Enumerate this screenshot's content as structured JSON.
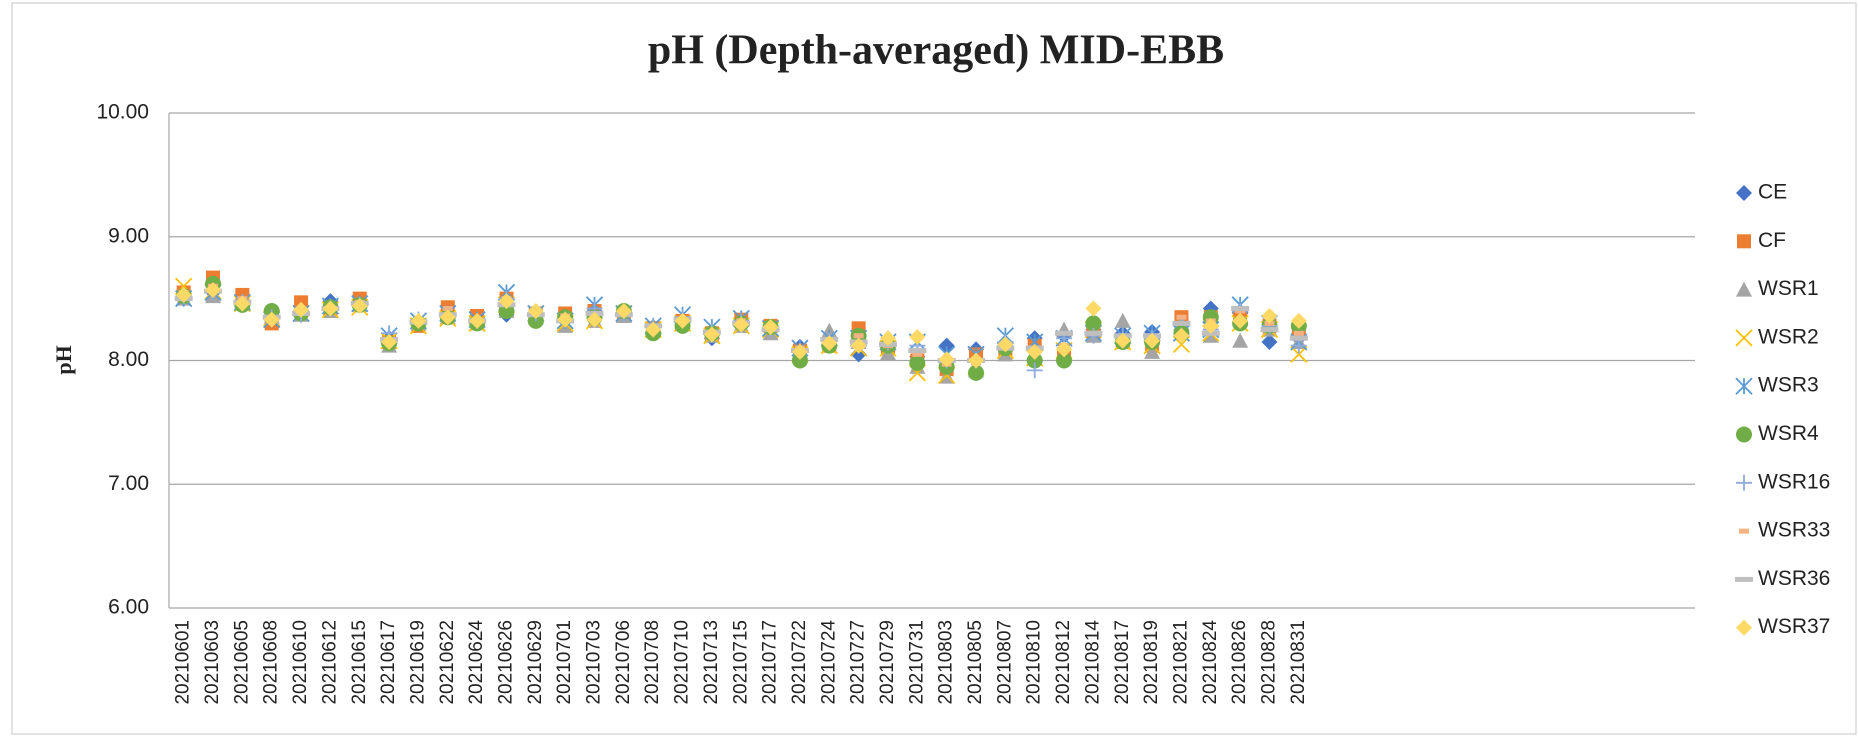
{
  "chart_data": {
    "type": "scatter",
    "title": "pH (Depth-averaged) MID-EBB",
    "y_label": "pH",
    "categories": [
      "20210601",
      "20210603",
      "20210605",
      "20210608",
      "20210610",
      "20210612",
      "20210615",
      "20210617",
      "20210619",
      "20210622",
      "20210624",
      "20210626",
      "20210629",
      "20210701",
      "20210703",
      "20210706",
      "20210708",
      "20210710",
      "20210713",
      "20210715",
      "20210717",
      "20210722",
      "20210724",
      "20210727",
      "20210729",
      "20210731",
      "20210803",
      "20210805",
      "20210807",
      "20210810",
      "20210812",
      "20210814",
      "20210817",
      "20210819",
      "20210821",
      "20210824",
      "20210826",
      "20210828",
      "20210831",
      null,
      null,
      null,
      null,
      null,
      null,
      null,
      null,
      null,
      null,
      null,
      null,
      null
    ],
    "ylim": [
      6,
      10
    ],
    "yticks": [
      {
        "value": 6,
        "label": "6.00"
      },
      {
        "value": 7,
        "label": "7.00"
      },
      {
        "value": 8,
        "label": "8.00"
      },
      {
        "value": 9,
        "label": "9.00"
      },
      {
        "value": 10,
        "label": "10.00"
      }
    ],
    "grid": true,
    "legend": "right",
    "series": [
      {
        "name": "CE",
        "color": "#4472c4",
        "marker": "diamond",
        "values": [
          8.5,
          8.55,
          8.48,
          8.33,
          8.4,
          8.48,
          8.47,
          8.18,
          8.3,
          8.38,
          8.35,
          8.37,
          8.36,
          8.32,
          8.4,
          8.38,
          8.27,
          8.32,
          8.18,
          8.3,
          8.26,
          8.11,
          8.13,
          8.05,
          8.12,
          8.03,
          8.12,
          8.09,
          8.12,
          8.18,
          8.2,
          8.25,
          8.22,
          8.23,
          8.25,
          8.42,
          8.38,
          8.15,
          8.18,
          null,
          null,
          null,
          null,
          null,
          null,
          null,
          null,
          null,
          null,
          null,
          null,
          null
        ]
      },
      {
        "name": "CF",
        "color": "#ed7d31",
        "marker": "square",
        "values": [
          8.55,
          8.67,
          8.53,
          8.3,
          8.47,
          8.4,
          8.5,
          8.15,
          8.28,
          8.43,
          8.36,
          8.5,
          8.38,
          8.38,
          8.4,
          8.38,
          8.26,
          8.32,
          8.22,
          8.33,
          8.28,
          8.08,
          8.12,
          8.26,
          8.1,
          8.0,
          7.93,
          8.05,
          8.08,
          8.12,
          8.05,
          8.22,
          8.15,
          8.12,
          8.35,
          8.35,
          8.38,
          8.28,
          8.22,
          null,
          null,
          null,
          null,
          null,
          null,
          null,
          null,
          null,
          null,
          null,
          null,
          null
        ]
      },
      {
        "name": "WSR1",
        "color": "#a5a5a5",
        "marker": "triangle",
        "values": [
          8.5,
          8.52,
          8.48,
          8.35,
          8.37,
          8.4,
          8.45,
          8.12,
          8.3,
          8.35,
          8.3,
          8.4,
          8.35,
          8.28,
          8.32,
          8.36,
          8.27,
          8.31,
          8.2,
          8.28,
          8.22,
          8.07,
          8.24,
          8.15,
          8.06,
          7.95,
          7.87,
          7.92,
          8.05,
          8.05,
          8.25,
          8.2,
          8.32,
          8.07,
          8.3,
          8.2,
          8.16,
          8.25,
          8.15,
          null,
          null,
          null,
          null,
          null,
          null,
          null,
          null,
          null,
          null,
          null,
          null,
          null
        ]
      },
      {
        "name": "WSR2",
        "color": "#ffc000",
        "marker": "x",
        "values": [
          8.6,
          8.56,
          8.46,
          8.34,
          8.38,
          8.41,
          8.43,
          8.16,
          8.28,
          8.34,
          8.3,
          8.45,
          8.38,
          8.3,
          8.32,
          8.38,
          8.25,
          8.3,
          8.2,
          8.28,
          8.25,
          8.05,
          8.12,
          8.1,
          8.1,
          7.9,
          7.88,
          7.95,
          8.08,
          8.02,
          8.08,
          8.25,
          8.15,
          8.12,
          8.13,
          8.22,
          8.3,
          8.25,
          8.05,
          null,
          null,
          null,
          null,
          null,
          null,
          null,
          null,
          null,
          null,
          null,
          null,
          null
        ]
      },
      {
        "name": "WSR3",
        "color": "#5b9bd5",
        "marker": "star",
        "values": [
          8.5,
          8.55,
          8.47,
          8.33,
          8.38,
          8.44,
          8.46,
          8.2,
          8.32,
          8.38,
          8.33,
          8.55,
          8.38,
          8.32,
          8.45,
          8.38,
          8.28,
          8.37,
          8.27,
          8.34,
          8.26,
          8.1,
          8.18,
          8.18,
          8.15,
          8.15,
          8.05,
          8.05,
          8.2,
          8.15,
          8.18,
          8.22,
          8.2,
          8.22,
          8.22,
          8.25,
          8.45,
          8.3,
          8.15,
          null,
          null,
          null,
          null,
          null,
          null,
          null,
          null,
          null,
          null,
          null,
          null,
          null
        ]
      },
      {
        "name": "WSR4",
        "color": "#70ad47",
        "marker": "circle",
        "values": [
          8.52,
          8.62,
          8.45,
          8.4,
          8.38,
          8.43,
          8.45,
          8.14,
          8.3,
          8.35,
          8.3,
          8.4,
          8.32,
          8.35,
          8.35,
          8.4,
          8.22,
          8.28,
          8.22,
          8.3,
          8.27,
          8.0,
          8.12,
          8.2,
          8.12,
          7.98,
          7.95,
          7.9,
          8.1,
          8.0,
          8.0,
          8.3,
          8.15,
          8.15,
          8.22,
          8.35,
          8.3,
          8.28,
          8.28,
          null,
          null,
          null,
          null,
          null,
          null,
          null,
          null,
          null,
          null,
          null,
          null,
          null
        ]
      },
      {
        "name": "WSR16",
        "color": "#8faadc",
        "marker": "plus",
        "values": [
          8.52,
          8.55,
          8.47,
          8.35,
          8.37,
          8.42,
          8.45,
          8.22,
          8.33,
          8.36,
          8.32,
          8.5,
          8.38,
          8.33,
          8.42,
          8.38,
          8.28,
          8.35,
          8.24,
          8.32,
          8.26,
          8.08,
          8.16,
          8.12,
          8.14,
          8.12,
          8.0,
          8.0,
          8.15,
          7.92,
          8.18,
          8.2,
          8.2,
          8.18,
          8.2,
          8.25,
          8.4,
          8.28,
          8.12,
          null,
          null,
          null,
          null,
          null,
          null,
          null,
          null,
          null,
          null,
          null,
          null,
          null
        ]
      },
      {
        "name": "WSR33",
        "color": "#f4b183",
        "marker": "dash",
        "values": [
          8.55,
          8.6,
          8.5,
          8.33,
          8.4,
          8.42,
          8.47,
          8.16,
          8.32,
          8.42,
          8.33,
          8.5,
          8.38,
          8.36,
          8.38,
          8.38,
          8.26,
          8.32,
          8.22,
          8.32,
          8.28,
          8.1,
          8.15,
          8.2,
          8.12,
          8.05,
          7.97,
          7.98,
          8.1,
          8.1,
          8.12,
          8.22,
          8.18,
          8.18,
          8.35,
          8.32,
          8.4,
          8.3,
          8.22,
          null,
          null,
          null,
          null,
          null,
          null,
          null,
          null,
          null,
          null,
          null,
          null,
          null
        ]
      },
      {
        "name": "WSR36",
        "color": "#bfbfbf",
        "marker": "longdash",
        "values": [
          8.5,
          8.56,
          8.47,
          8.35,
          8.38,
          8.42,
          8.46,
          8.17,
          8.31,
          8.37,
          8.32,
          8.45,
          8.37,
          8.32,
          8.38,
          8.37,
          8.28,
          8.33,
          8.23,
          8.3,
          8.25,
          8.08,
          8.17,
          8.15,
          8.13,
          8.08,
          8.0,
          8.0,
          8.1,
          8.1,
          8.22,
          8.22,
          8.2,
          8.2,
          8.3,
          8.22,
          8.42,
          8.25,
          8.18,
          null,
          null,
          null,
          null,
          null,
          null,
          null,
          null,
          null,
          null,
          null,
          null,
          null
        ]
      },
      {
        "name": "WSR37",
        "color": "#ffd966",
        "marker": "diamond",
        "values": [
          8.53,
          8.57,
          8.46,
          8.33,
          8.41,
          8.42,
          8.44,
          8.15,
          8.32,
          8.35,
          8.32,
          8.48,
          8.4,
          8.33,
          8.33,
          8.4,
          8.25,
          8.32,
          8.21,
          8.29,
          8.27,
          8.07,
          8.14,
          8.12,
          8.18,
          8.19,
          8.01,
          8.0,
          8.13,
          8.07,
          8.09,
          8.42,
          8.16,
          8.16,
          8.2,
          8.28,
          8.32,
          8.36,
          8.32,
          null,
          null,
          null,
          null,
          null,
          null,
          null,
          null,
          null,
          null,
          null,
          null,
          null
        ]
      }
    ]
  }
}
